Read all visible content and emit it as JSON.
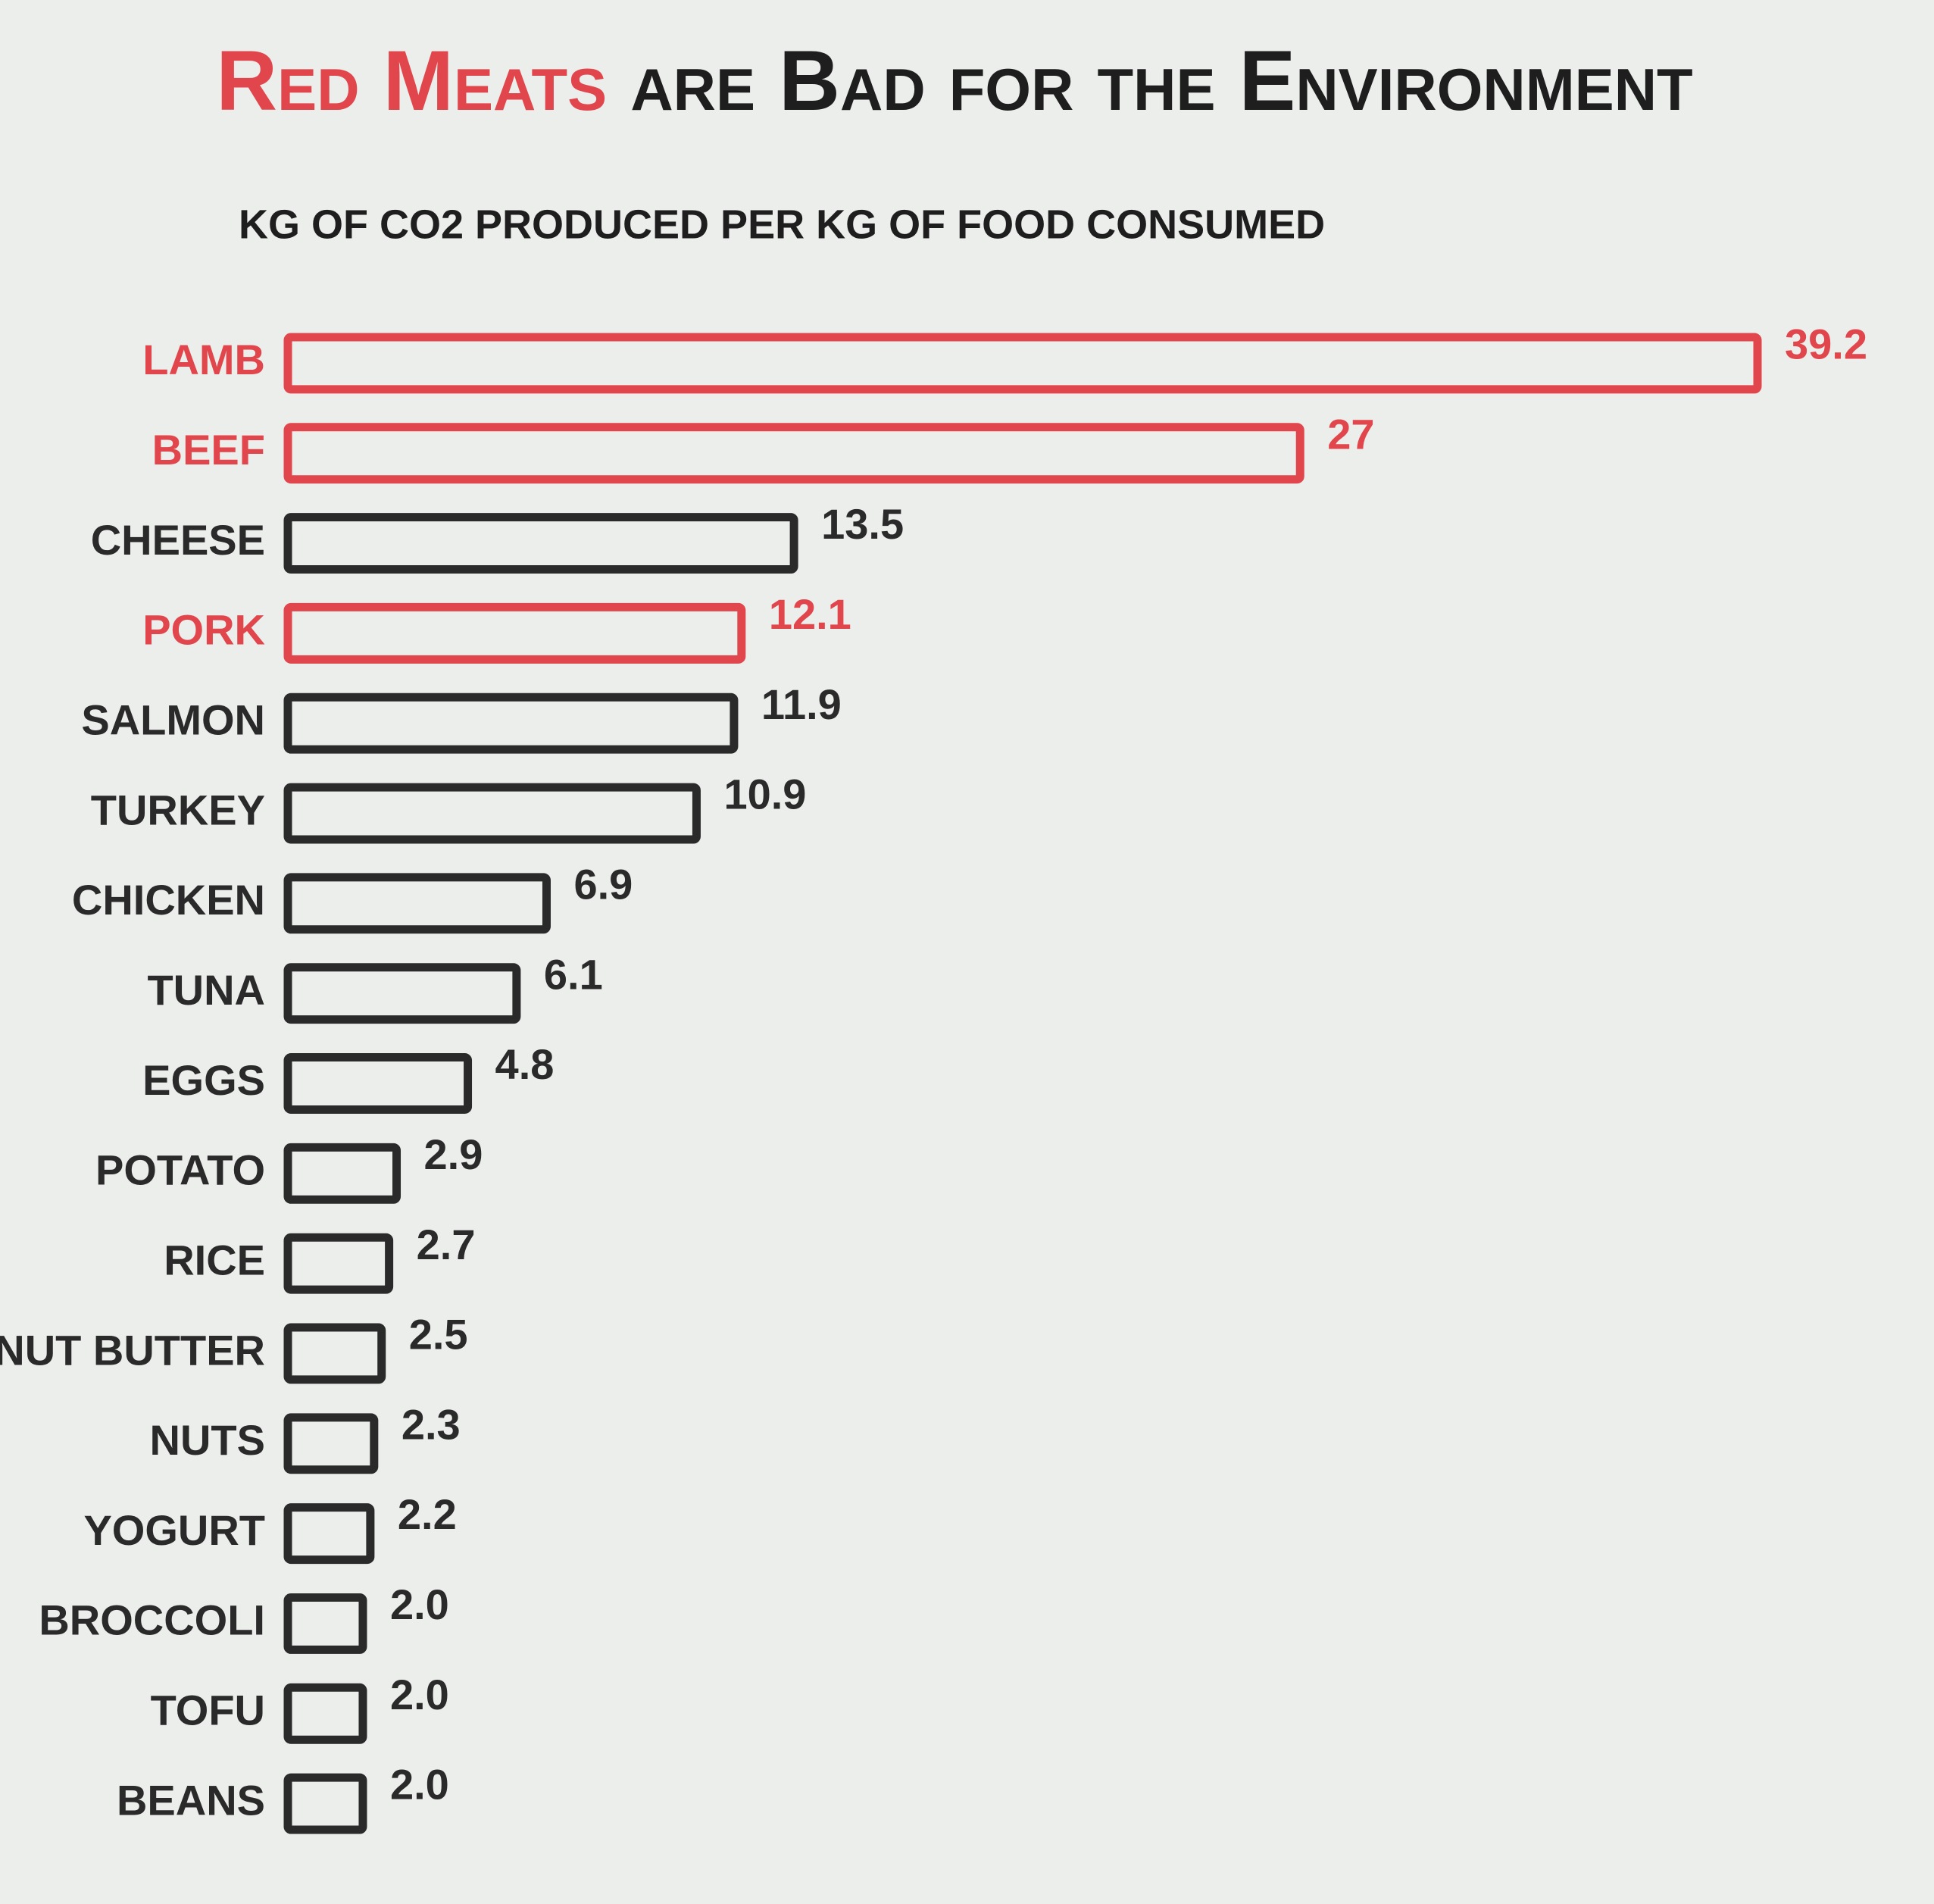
{
  "chart_data": {
    "type": "bar",
    "title": [
      "Red Meats",
      "are Bad for the Environment"
    ],
    "title_colors": [
      "#e0464b",
      "#1e1e1e"
    ],
    "subtitle": "KG OF CO2 PRODUCED PER KG OF FOOD CONSUMED",
    "categories": [
      "LAMB",
      "BEEF",
      "CHEESE",
      "PORK",
      "SALMON",
      "TURKEY",
      "CHICKEN",
      "TUNA",
      "EGGS",
      "POTATO",
      "RICE",
      "PEANUT BUTTER",
      "NUTS",
      "YOGURT",
      "BROCCOLI",
      "TOFU",
      "BEANS"
    ],
    "values": [
      39.2,
      27,
      13.5,
      12.1,
      11.9,
      10.9,
      6.9,
      6.1,
      4.8,
      2.9,
      2.7,
      2.5,
      2.3,
      2.2,
      2.0,
      2.0,
      2.0
    ],
    "value_labels": [
      "39.2",
      "27",
      "13.5",
      "12.1",
      "11.9",
      "10.9",
      "6.9",
      "6.1",
      "4.8",
      "2.9",
      "2.7",
      "2.5",
      "2.3",
      "2.2",
      "2.0",
      "2.0",
      "2.0"
    ],
    "colors": [
      "#e0464b",
      "#e0464b",
      "#2a2a2a",
      "#e0464b",
      "#2a2a2a",
      "#2a2a2a",
      "#2a2a2a",
      "#2a2a2a",
      "#2a2a2a",
      "#2a2a2a",
      "#2a2a2a",
      "#2a2a2a",
      "#2a2a2a",
      "#2a2a2a",
      "#2a2a2a",
      "#2a2a2a",
      "#2a2a2a"
    ]
  }
}
